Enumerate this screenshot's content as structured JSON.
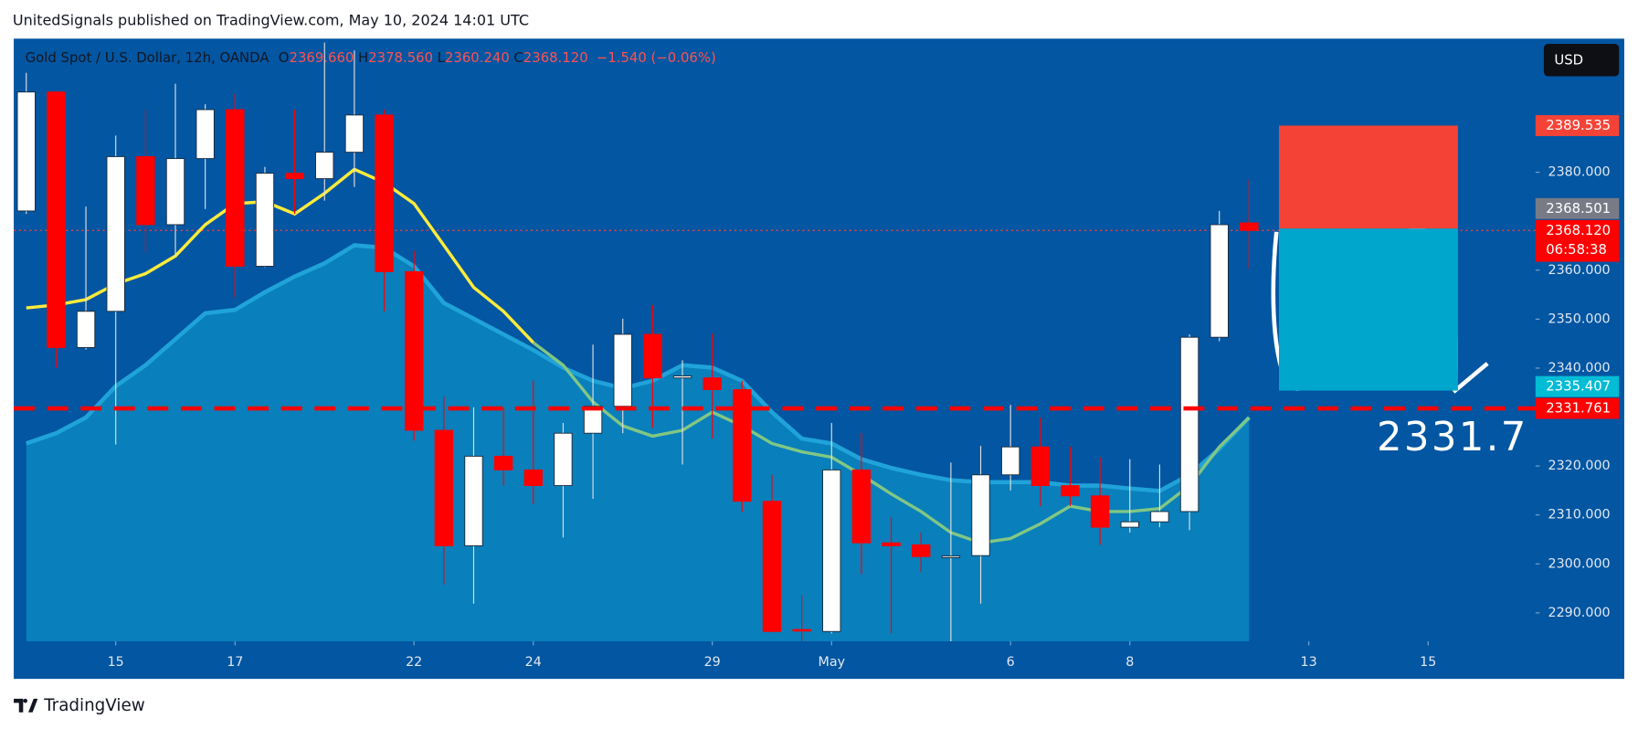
{
  "header": {
    "title": "UnitedSignals published on TradingView.com, May 10, 2024 14:01 UTC"
  },
  "footer": {
    "brand": "TradingView"
  },
  "toolbar": {
    "currency": "USD"
  },
  "chart_data": {
    "type": "candlestick",
    "legend": {
      "symbol": "Gold Spot / U.S. Dollar, 12h, OANDA",
      "fields": [
        {
          "key": "O",
          "value": "2369.660"
        },
        {
          "key": "H",
          "value": "2378.560"
        },
        {
          "key": "L",
          "value": "2360.240"
        },
        {
          "key": "C",
          "value": "2368.120"
        }
      ],
      "change": "−1.540 (−0.06%)"
    },
    "open": [
      2372.1,
      2396.4,
      2344.2,
      2351.6,
      2383.2,
      2369.3,
      2382.8,
      2392.8,
      2360.8,
      2379.8,
      2378.7,
      2384.1,
      2391.7,
      2359.7,
      2327.3,
      2303.7,
      2322.0,
      2319.2,
      2316.0,
      2326.7,
      2332.2,
      2346.9,
      2338.0,
      2338.0,
      2335.6,
      2312.8,
      2286.6,
      2286.2,
      2319.2,
      2304.3,
      2303.9,
      2301.5,
      2301.7,
      2318.2,
      2323.9,
      2316.0,
      2313.9,
      2307.5,
      2308.6,
      2310.7,
      2346.3,
      2369.66
    ],
    "high": [
      2400.3,
      2396.6,
      2373.0,
      2387.5,
      2392.8,
      2398.1,
      2393.9,
      2396.0,
      2381.1,
      2392.8,
      2406.5,
      2404.9,
      2392.8,
      2364.0,
      2334.2,
      2332.0,
      2332.0,
      2337.4,
      2328.8,
      2344.8,
      2350.1,
      2352.9,
      2341.6,
      2347.0,
      2337.4,
      2318.2,
      2293.6,
      2328.8,
      2326.7,
      2309.6,
      2306.4,
      2320.7,
      2324.1,
      2332.5,
      2329.9,
      2323.9,
      2321.8,
      2321.4,
      2320.3,
      2346.9,
      2372.1,
      2378.56
    ],
    "low": [
      2371.5,
      2340.1,
      2343.8,
      2324.4,
      2363.6,
      2362.9,
      2372.5,
      2354.4,
      2360.6,
      2371.5,
      2374.2,
      2377.0,
      2351.6,
      2325.2,
      2295.8,
      2291.9,
      2316.0,
      2312.2,
      2305.4,
      2313.3,
      2326.7,
      2327.8,
      2320.3,
      2325.6,
      2310.7,
      2286.0,
      2284.2,
      2285.8,
      2297.9,
      2285.8,
      2298.3,
      2284.2,
      2291.9,
      2315.0,
      2311.8,
      2311.8,
      2303.9,
      2306.4,
      2307.5,
      2306.9,
      2345.5,
      2360.24
    ],
    "close": [
      2396.4,
      2344.2,
      2351.6,
      2383.2,
      2369.3,
      2382.8,
      2392.8,
      2360.8,
      2379.8,
      2378.7,
      2384.1,
      2391.7,
      2359.7,
      2327.3,
      2303.7,
      2322.0,
      2319.2,
      2316.0,
      2326.7,
      2332.2,
      2346.9,
      2338.0,
      2338.4,
      2335.6,
      2312.8,
      2286.2,
      2286.4,
      2319.2,
      2304.3,
      2303.7,
      2301.5,
      2301.6,
      2318.2,
      2323.9,
      2316.0,
      2313.9,
      2307.5,
      2308.6,
      2310.7,
      2346.3,
      2369.3,
      2368.12
    ],
    "up_color": "#ffffff",
    "down_color": "#ff0000",
    "series": [
      {
        "color": "#ffeb3b",
        "values": [
          2352.3,
          2352.9,
          2354.0,
          2357.2,
          2359.3,
          2362.9,
          2369.3,
          2373.6,
          2374.0,
          2371.5,
          2375.7,
          2380.6,
          2377.9,
          2373.6,
          2365.1,
          2356.5,
          2351.6,
          2345.2,
          null,
          null,
          null,
          null,
          null,
          null,
          null,
          null,
          null,
          null,
          null,
          null,
          null,
          null,
          null,
          null,
          null,
          null,
          null,
          null,
          null,
          null,
          null,
          null
        ]
      },
      {
        "color": "#81c784",
        "values": [
          null,
          null,
          null,
          null,
          null,
          null,
          null,
          null,
          null,
          null,
          null,
          null,
          null,
          null,
          null,
          null,
          null,
          2345.2,
          2340.6,
          2333.1,
          2328.2,
          2326.1,
          2327.3,
          2331.0,
          2328.2,
          2324.6,
          2322.9,
          2321.8,
          2318.2,
          2314.3,
          2310.7,
          2306.4,
          2304.3,
          2305.2,
          2308.2,
          2311.8,
          2310.7,
          2310.7,
          2311.3,
          2316.0,
          2323.9,
          2329.9
        ]
      }
    ],
    "area": {
      "color": "#0a86c0",
      "values": [
        2324.6,
        2326.7,
        2329.9,
        2336.3,
        2340.6,
        2345.9,
        2351.2,
        2351.9,
        2355.5,
        2358.7,
        2361.4,
        2365.1,
        2364.6,
        2360.8,
        2353.3,
        2350.1,
        2346.9,
        2343.7,
        2340.1,
        2337.4,
        2335.9,
        2337.4,
        2340.6,
        2340.1,
        2337.4,
        2331.0,
        2325.6,
        2324.6,
        2321.4,
        2319.6,
        2318.2,
        2317.1,
        2316.7,
        2316.7,
        2316.7,
        2316.0,
        2316.0,
        2315.4,
        2314.9,
        2318.2,
        2323.5,
        2329.9
      ]
    },
    "xlim": [
      -0.42,
      50.6
    ],
    "xticks": [
      {
        "value": 3,
        "label": "15"
      },
      {
        "value": 7,
        "label": "17"
      },
      {
        "value": 13,
        "label": "22"
      },
      {
        "value": 17,
        "label": "24"
      },
      {
        "value": 23,
        "label": "29"
      },
      {
        "value": 27,
        "label": "May"
      },
      {
        "value": 33,
        "label": "6"
      },
      {
        "value": 37,
        "label": "8"
      },
      {
        "value": 43,
        "label": "13"
      },
      {
        "value": 47,
        "label": "15"
      }
    ],
    "ylim": [
      2284.2,
      2407.3
    ],
    "yticks": [
      {
        "value": 2290,
        "label": "2290.000"
      },
      {
        "value": 2300,
        "label": "2300.000"
      },
      {
        "value": 2310,
        "label": "2310.000"
      },
      {
        "value": 2320,
        "label": "2320.000"
      },
      {
        "value": 2340,
        "label": "2340.000"
      },
      {
        "value": 2350,
        "label": "2350.000"
      },
      {
        "value": 2360,
        "label": "2360.000"
      },
      {
        "value": 2380,
        "label": "2380.000"
      }
    ],
    "level": {
      "value": 2331.761,
      "color": "#ff0000"
    },
    "last_price": {
      "value": 2368.12,
      "color": "#ff3b3b"
    },
    "position": {
      "entry": 2368.501,
      "stop": 2389.535,
      "target": 2335.407,
      "start": 42,
      "end": 48,
      "stop_color": "#f44336",
      "target_color": "#00a6cc"
    },
    "annotation": {
      "text": "2331.7",
      "value": 2331.7
    },
    "price_labels": [
      {
        "value": 2389.535,
        "label": "2389.535",
        "color": "#f44336"
      },
      {
        "value": 2368.501,
        "label": "2368.501",
        "color": "#787b86"
      },
      {
        "value": 2368.12,
        "label": "2368.120",
        "countdown": "06:58:38",
        "color": "#ff0000"
      },
      {
        "value": 2335.407,
        "label": "2335.407",
        "color": "#00bcd4"
      },
      {
        "value": 2331.761,
        "label": "2331.761",
        "color": "#ff0000"
      }
    ]
  }
}
